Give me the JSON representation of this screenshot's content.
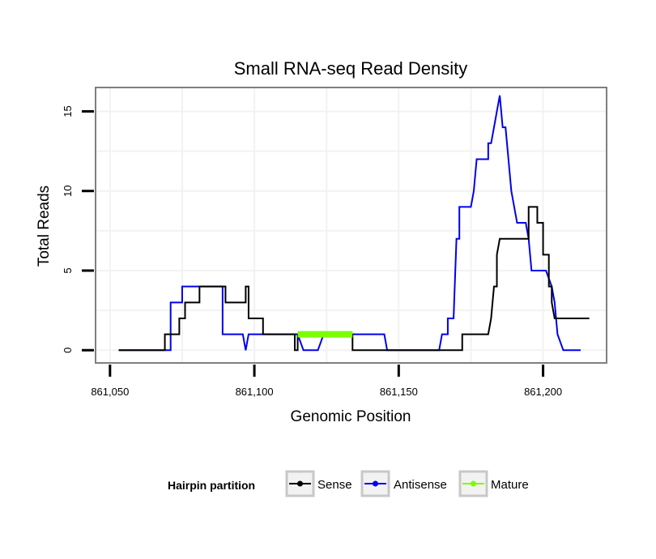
{
  "chart_data": {
    "type": "line",
    "title": "Small RNA-seq Read Density",
    "xlabel": "Genomic Position",
    "ylabel": "Total Reads",
    "xlim": [
      861045,
      861222
    ],
    "ylim": [
      -0.8,
      16.5
    ],
    "x_ticks": [
      861050,
      861100,
      861150,
      861200
    ],
    "x_tick_labels": [
      "861,050",
      "861,100",
      "861,150",
      "861,200"
    ],
    "y_ticks": [
      0,
      5,
      10,
      15
    ],
    "y_tick_labels": [
      "0",
      "5",
      "10",
      "15"
    ],
    "grid": true,
    "legend": {
      "title": "Hairpin partition",
      "position": "bottom",
      "entries": [
        "Sense",
        "Antisense",
        "Mature"
      ]
    },
    "colors": {
      "Sense": "#000000",
      "Antisense": "#0000ee",
      "Mature": "#7cfc00",
      "panel_border": "#7f7f7f",
      "grid": "#f2f2f2"
    },
    "series": [
      {
        "name": "Sense",
        "points": [
          [
            861053,
            0
          ],
          [
            861069,
            0
          ],
          [
            861069,
            1
          ],
          [
            861074,
            1
          ],
          [
            861074,
            2
          ],
          [
            861076,
            2
          ],
          [
            861076,
            3
          ],
          [
            861081,
            3
          ],
          [
            861081,
            4
          ],
          [
            861090,
            4
          ],
          [
            861090,
            3
          ],
          [
            861097,
            3
          ],
          [
            861097,
            4
          ],
          [
            861098,
            4
          ],
          [
            861098,
            2
          ],
          [
            861103,
            2
          ],
          [
            861103,
            1
          ],
          [
            861114,
            1
          ],
          [
            861114,
            0
          ],
          [
            861115,
            0
          ],
          [
            861115,
            1
          ],
          [
            861134,
            1
          ],
          [
            861134,
            0
          ],
          [
            861172,
            0
          ],
          [
            861172,
            1
          ],
          [
            861181,
            1
          ],
          [
            861182,
            2
          ],
          [
            861183,
            4
          ],
          [
            861184,
            4
          ],
          [
            861184,
            6
          ],
          [
            861185,
            7
          ],
          [
            861195,
            7
          ],
          [
            861195,
            9
          ],
          [
            861198,
            9
          ],
          [
            861198,
            8
          ],
          [
            861200,
            8
          ],
          [
            861200,
            6
          ],
          [
            861202,
            6
          ],
          [
            861202,
            4
          ],
          [
            861203,
            4
          ],
          [
            861203,
            3
          ],
          [
            861204,
            2
          ],
          [
            861216,
            2
          ]
        ]
      },
      {
        "name": "Antisense",
        "points": [
          [
            861053,
            0
          ],
          [
            861071,
            0
          ],
          [
            861071,
            3
          ],
          [
            861075,
            3
          ],
          [
            861075,
            4
          ],
          [
            861089,
            4
          ],
          [
            861089,
            1
          ],
          [
            861096,
            1
          ],
          [
            861097,
            0
          ],
          [
            861098,
            1
          ],
          [
            861115,
            1
          ],
          [
            861117,
            0
          ],
          [
            861122,
            0
          ],
          [
            861124,
            1
          ],
          [
            861145,
            1
          ],
          [
            861146,
            0
          ],
          [
            861164,
            0
          ],
          [
            861165,
            1
          ],
          [
            861167,
            1
          ],
          [
            861167,
            2
          ],
          [
            861169,
            2
          ],
          [
            861170,
            7
          ],
          [
            861171,
            7
          ],
          [
            861171,
            9
          ],
          [
            861175,
            9
          ],
          [
            861176,
            10
          ],
          [
            861177,
            12
          ],
          [
            861181,
            12
          ],
          [
            861181,
            13
          ],
          [
            861182,
            13
          ],
          [
            861183,
            14
          ],
          [
            861184,
            15
          ],
          [
            861185,
            16
          ],
          [
            861186,
            14
          ],
          [
            861187,
            14
          ],
          [
            861188,
            12
          ],
          [
            861189,
            10
          ],
          [
            861191,
            8
          ],
          [
            861194,
            8
          ],
          [
            861195,
            7
          ],
          [
            861196,
            5
          ],
          [
            861201,
            5
          ],
          [
            861203,
            4
          ],
          [
            861204,
            3
          ],
          [
            861205,
            1
          ],
          [
            861207,
            0
          ],
          [
            861213,
            0
          ]
        ]
      },
      {
        "name": "Mature",
        "points": [
          [
            861115,
            1
          ],
          [
            861134,
            1
          ]
        ]
      }
    ]
  }
}
